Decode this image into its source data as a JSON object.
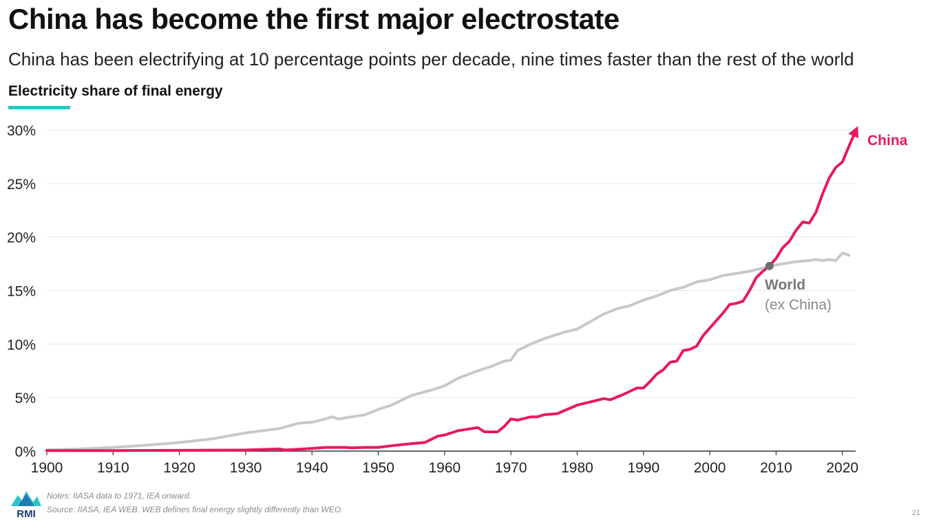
{
  "title": "China has become the first major electrostate",
  "subtitle": "China has been electrifying at 10 percentage points per decade, nine times faster than the rest of the world",
  "chart_label": "Electricity share of final energy",
  "notes": {
    "line1": "Notes: IIASA data to 1971, IEA onward.",
    "line2": "Source: IIASA, IEA WEB. WEB defines final energy slightly differently than WEO."
  },
  "logo_text": "RMI",
  "page_number": "21",
  "colors": {
    "china": "#e8195e",
    "world": "#c8c8c8",
    "accent": "#2ec4c4",
    "intersection": "#6e6e6e"
  },
  "chart_data": {
    "type": "line",
    "title": "Electricity share of final energy",
    "xlabel": "",
    "ylabel": "",
    "xlim": [
      1900,
      2022
    ],
    "ylim": [
      0,
      30
    ],
    "x_ticks": [
      1900,
      1910,
      1920,
      1930,
      1940,
      1950,
      1960,
      1970,
      1980,
      1990,
      2000,
      2010,
      2020
    ],
    "y_ticks": [
      0,
      5,
      10,
      15,
      20,
      25,
      30
    ],
    "y_tick_labels": [
      "0%",
      "5%",
      "10%",
      "15%",
      "20%",
      "25%",
      "30%"
    ],
    "grid": true,
    "series": [
      {
        "name": "World",
        "sublabel": "(ex China)",
        "color": "#c8c8c8",
        "points": [
          [
            1900,
            0.1
          ],
          [
            1905,
            0.2
          ],
          [
            1910,
            0.35
          ],
          [
            1915,
            0.55
          ],
          [
            1920,
            0.8
          ],
          [
            1925,
            1.15
          ],
          [
            1930,
            1.7
          ],
          [
            1935,
            2.1
          ],
          [
            1938,
            2.6
          ],
          [
            1940,
            2.7
          ],
          [
            1942,
            3.0
          ],
          [
            1943,
            3.2
          ],
          [
            1944,
            3.0
          ],
          [
            1946,
            3.2
          ],
          [
            1948,
            3.4
          ],
          [
            1950,
            3.9
          ],
          [
            1952,
            4.3
          ],
          [
            1955,
            5.2
          ],
          [
            1958,
            5.7
          ],
          [
            1960,
            6.1
          ],
          [
            1962,
            6.8
          ],
          [
            1965,
            7.5
          ],
          [
            1967,
            7.9
          ],
          [
            1969,
            8.4
          ],
          [
            1970,
            8.5
          ],
          [
            1971,
            9.4
          ],
          [
            1973,
            10.0
          ],
          [
            1975,
            10.5
          ],
          [
            1978,
            11.1
          ],
          [
            1980,
            11.4
          ],
          [
            1982,
            12.1
          ],
          [
            1984,
            12.8
          ],
          [
            1986,
            13.3
          ],
          [
            1988,
            13.6
          ],
          [
            1990,
            14.1
          ],
          [
            1992,
            14.5
          ],
          [
            1994,
            15.0
          ],
          [
            1996,
            15.3
          ],
          [
            1998,
            15.8
          ],
          [
            2000,
            16.0
          ],
          [
            2002,
            16.4
          ],
          [
            2004,
            16.6
          ],
          [
            2006,
            16.8
          ],
          [
            2008,
            17.1
          ],
          [
            2009,
            17.3
          ],
          [
            2011,
            17.5
          ],
          [
            2013,
            17.7
          ],
          [
            2015,
            17.8
          ],
          [
            2016,
            17.9
          ],
          [
            2017,
            17.8
          ],
          [
            2018,
            17.9
          ],
          [
            2019,
            17.8
          ],
          [
            2020,
            18.5
          ],
          [
            2021,
            18.3
          ]
        ]
      },
      {
        "name": "China",
        "color": "#e8195e",
        "points": [
          [
            1900,
            0.05
          ],
          [
            1910,
            0.05
          ],
          [
            1920,
            0.07
          ],
          [
            1930,
            0.1
          ],
          [
            1935,
            0.2
          ],
          [
            1936,
            0.1
          ],
          [
            1940,
            0.25
          ],
          [
            1942,
            0.35
          ],
          [
            1945,
            0.35
          ],
          [
            1946,
            0.3
          ],
          [
            1948,
            0.35
          ],
          [
            1950,
            0.35
          ],
          [
            1952,
            0.5
          ],
          [
            1955,
            0.7
          ],
          [
            1957,
            0.8
          ],
          [
            1959,
            1.4
          ],
          [
            1960,
            1.5
          ],
          [
            1962,
            1.9
          ],
          [
            1964,
            2.1
          ],
          [
            1965,
            2.2
          ],
          [
            1966,
            1.8
          ],
          [
            1968,
            1.8
          ],
          [
            1969,
            2.3
          ],
          [
            1970,
            3.0
          ],
          [
            1971,
            2.9
          ],
          [
            1973,
            3.2
          ],
          [
            1974,
            3.2
          ],
          [
            1975,
            3.4
          ],
          [
            1977,
            3.5
          ],
          [
            1980,
            4.3
          ],
          [
            1982,
            4.6
          ],
          [
            1984,
            4.9
          ],
          [
            1985,
            4.8
          ],
          [
            1987,
            5.3
          ],
          [
            1989,
            5.9
          ],
          [
            1990,
            5.9
          ],
          [
            1991,
            6.5
          ],
          [
            1992,
            7.2
          ],
          [
            1993,
            7.6
          ],
          [
            1994,
            8.3
          ],
          [
            1995,
            8.4
          ],
          [
            1996,
            9.4
          ],
          [
            1997,
            9.5
          ],
          [
            1998,
            9.8
          ],
          [
            1999,
            10.8
          ],
          [
            2000,
            11.5
          ],
          [
            2001,
            12.2
          ],
          [
            2002,
            12.9
          ],
          [
            2003,
            13.7
          ],
          [
            2004,
            13.8
          ],
          [
            2005,
            14.0
          ],
          [
            2006,
            15.0
          ],
          [
            2007,
            16.2
          ],
          [
            2008,
            16.8
          ],
          [
            2009,
            17.3
          ],
          [
            2010,
            18.0
          ],
          [
            2011,
            19.0
          ],
          [
            2012,
            19.6
          ],
          [
            2013,
            20.6
          ],
          [
            2014,
            21.4
          ],
          [
            2015,
            21.3
          ],
          [
            2016,
            22.3
          ],
          [
            2017,
            24.0
          ],
          [
            2018,
            25.5
          ],
          [
            2019,
            26.5
          ],
          [
            2020,
            27.0
          ],
          [
            2021,
            28.5
          ],
          [
            2022,
            29.9
          ]
        ]
      }
    ],
    "intersection": {
      "x": 2009,
      "y": 17.3
    },
    "legend": "inline"
  }
}
